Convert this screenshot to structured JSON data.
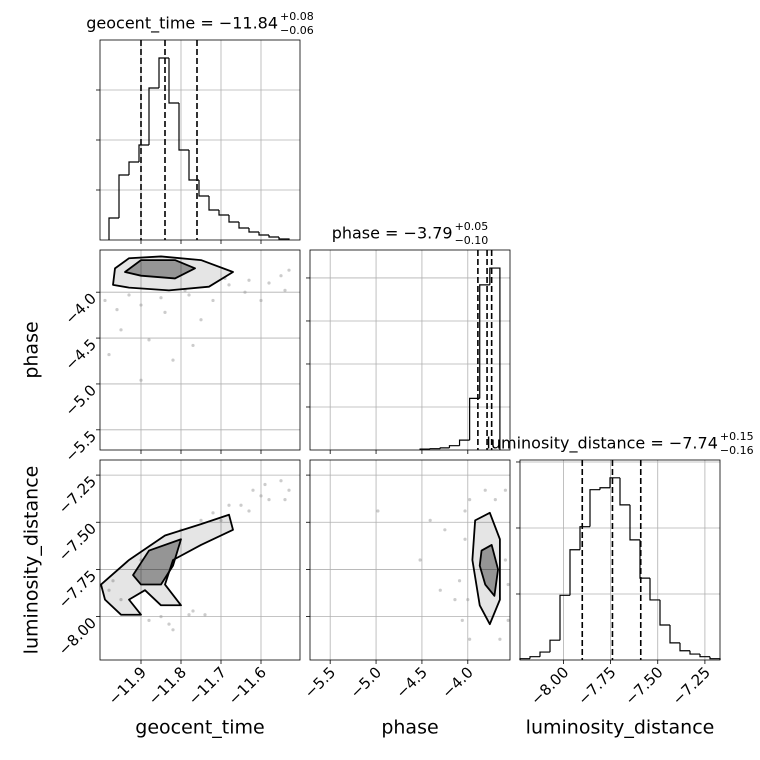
{
  "chart_data": [
    {
      "type": "histogram",
      "title": "geocent_time = −11.84",
      "title_sup": "+0.08",
      "title_sub": "−0.06",
      "bins": [
        -11.98,
        -11.955,
        -11.93,
        -11.905,
        -11.88,
        -11.855,
        -11.83,
        -11.805,
        -11.78,
        -11.755,
        -11.73,
        -11.705,
        -11.68,
        -11.655,
        -11.63,
        -11.605,
        -11.58,
        -11.555,
        -11.53
      ],
      "values": [
        0.44,
        1.3,
        1.56,
        1.9,
        3.04,
        3.64,
        2.74,
        1.8,
        1.2,
        0.88,
        0.6,
        0.5,
        0.36,
        0.24,
        0.16,
        0.1,
        0.06,
        0.02
      ],
      "quantiles": [
        -11.9,
        -11.84,
        -11.76
      ],
      "xlim": [
        -12.0025,
        -11.5025
      ],
      "xticks": [
        -11.9,
        -11.8,
        -11.7,
        -11.6
      ],
      "ylim": [
        0,
        4
      ],
      "yticks": [
        1,
        2,
        3
      ],
      "grid": true,
      "color": "#000000"
    },
    {
      "type": "scatter",
      "ylabel": "phase",
      "x": [
        -11.99,
        -11.96,
        -11.9,
        -11.85,
        -11.78,
        -11.68,
        -11.63,
        -11.58,
        -11.54,
        -11.88,
        -11.95,
        -11.75,
        -11.82,
        -11.9,
        -11.6,
        -11.64,
        -11.72,
        -11.98,
        -11.79,
        -11.69,
        -11.53,
        -11.55,
        -11.84,
        -11.77,
        -11.93
      ],
      "y": [
        -4.09,
        -4.19,
        -4.14,
        -4.06,
        -4.03,
        -3.92,
        -3.87,
        -3.9,
        -3.98,
        -4.52,
        -4.41,
        -4.3,
        -4.74,
        -4.96,
        -4.09,
        -4.0,
        -4.09,
        -4.68,
        -3.98,
        -3.85,
        -3.76,
        -3.82,
        -4.22,
        -4.58,
        -4.03
      ],
      "contours": [
        {
          "x": [
            -11.97,
            -11.965,
            -11.93,
            -11.85,
            -11.75,
            -11.67,
            -11.73,
            -11.83,
            -11.93,
            -11.97
          ],
          "y": [
            -3.92,
            -3.74,
            -3.63,
            -3.61,
            -3.65,
            -3.78,
            -3.94,
            -3.98,
            -3.95,
            -3.92
          ]
        },
        {
          "x": [
            -11.94,
            -11.9,
            -11.815,
            -11.765,
            -11.815,
            -11.9,
            -11.94
          ],
          "y": [
            -3.78,
            -3.65,
            -3.65,
            -3.74,
            -3.85,
            -3.82,
            -3.78
          ]
        }
      ],
      "xlim": [
        -12.0025,
        -11.5025
      ],
      "xticks": [
        -11.9,
        -11.8,
        -11.7,
        -11.6
      ],
      "ylim": [
        -5.72,
        -3.54
      ],
      "yticks": [
        {
          "value": -5.5,
          "label": "−5.5"
        },
        {
          "value": -5.0,
          "label": "−5.0"
        },
        {
          "value": -4.5,
          "label": "−4.5"
        },
        {
          "value": -4.0,
          "label": "−4.0"
        }
      ],
      "grid": true,
      "color": "#999999"
    },
    {
      "type": "histogram",
      "title": "phase = −3.79",
      "title_sup": "+0.05",
      "title_sub": "−0.10",
      "bins": [
        -4.52,
        -4.41,
        -4.3,
        -4.2,
        -4.09,
        -3.98,
        -3.87,
        -3.76,
        -3.65
      ],
      "values": [
        0.02,
        0.03,
        0.05,
        0.1,
        0.23,
        1.2,
        3.84,
        4.23
      ],
      "quantiles": [
        -3.89,
        -3.79,
        -3.74
      ],
      "xlim": [
        -5.72,
        -3.54
      ],
      "xticks": [
        -5.5,
        -5.0,
        -4.5,
        -4.0
      ],
      "ylim": [
        0,
        4.65
      ],
      "yticks": [
        1,
        2,
        3,
        4
      ],
      "grid": true,
      "color": "#000000"
    },
    {
      "type": "scatter",
      "xlabel": "geocent_time",
      "ylabel": "luminosity_distance",
      "x": [
        -11.65,
        -11.6,
        -11.55,
        -11.53,
        -11.63,
        -11.7,
        -11.58,
        -11.75,
        -11.8,
        -11.97,
        -11.78,
        -11.83,
        -11.88,
        -11.82,
        -11.74,
        -11.95,
        -11.98,
        -11.62,
        -11.68,
        -11.9,
        -11.54,
        -11.77,
        -11.85,
        -11.72,
        -11.59
      ],
      "y": [
        -7.41,
        -7.36,
        -7.28,
        -7.33,
        -7.44,
        -7.49,
        -7.38,
        -7.49,
        -7.54,
        -7.81,
        -7.99,
        -8.04,
        -8.02,
        -8.07,
        -7.99,
        -7.91,
        -7.86,
        -7.33,
        -7.41,
        -7.7,
        -7.38,
        -7.97,
        -8.0,
        -7.45,
        -7.3
      ],
      "contours": [
        {
          "x": [
            -12.0,
            -11.93,
            -11.84,
            -11.75,
            -11.68,
            -11.67,
            -11.75,
            -11.82,
            -11.84,
            -11.8,
            -11.85,
            -11.89,
            -11.93,
            -11.9,
            -11.95,
            -11.99,
            -12.0
          ],
          "y": [
            -7.83,
            -7.7,
            -7.57,
            -7.51,
            -7.46,
            -7.54,
            -7.62,
            -7.7,
            -7.83,
            -7.94,
            -7.94,
            -7.86,
            -7.91,
            -7.99,
            -7.99,
            -7.91,
            -7.83
          ]
        },
        {
          "x": [
            -11.92,
            -11.88,
            -11.8,
            -11.82,
            -11.85,
            -11.9,
            -11.92
          ],
          "y": [
            -7.78,
            -7.65,
            -7.59,
            -7.73,
            -7.83,
            -7.83,
            -7.78
          ]
        }
      ],
      "xlim": [
        -12.0025,
        -11.5025
      ],
      "xticks": [
        {
          "value": -11.9,
          "label": "−11.9"
        },
        {
          "value": -11.8,
          "label": "−11.8"
        },
        {
          "value": -11.7,
          "label": "−11.7"
        },
        {
          "value": -11.6,
          "label": "−11.6"
        }
      ],
      "ylim": [
        -8.23,
        -7.17
      ],
      "yticks": [
        {
          "value": -8.0,
          "label": "−8.00"
        },
        {
          "value": -7.75,
          "label": "−7.75"
        },
        {
          "value": -7.5,
          "label": "−7.50"
        },
        {
          "value": -7.25,
          "label": "−7.25"
        }
      ],
      "grid": true,
      "color": "#999999"
    },
    {
      "type": "scatter",
      "xlabel": "phase",
      "x": [
        -3.98,
        -4.03,
        -4.0,
        -3.59,
        -3.56,
        -4.09,
        -4.98,
        -4.52,
        -4.25,
        -4.06,
        -3.65,
        -3.81,
        -4.14,
        -3.59,
        -3.98,
        -4.3,
        -4.41,
        -3.7,
        -4.03,
        -3.56
      ],
      "y": [
        -7.38,
        -7.59,
        -7.91,
        -7.33,
        -8.02,
        -7.81,
        -7.44,
        -7.7,
        -7.54,
        -8.02,
        -8.12,
        -7.33,
        -7.91,
        -7.7,
        -8.12,
        -7.86,
        -7.49,
        -7.38,
        -7.44,
        -7.83
      ],
      "contours": [
        {
          "x": [
            -3.92,
            -3.76,
            -3.65,
            -3.65,
            -3.76,
            -3.87,
            -3.95,
            -3.92
          ],
          "y": [
            -7.49,
            -7.45,
            -7.59,
            -7.91,
            -8.04,
            -7.94,
            -7.7,
            -7.49
          ]
        },
        {
          "x": [
            -3.85,
            -3.74,
            -3.67,
            -3.71,
            -3.81,
            -3.87,
            -3.85
          ],
          "y": [
            -7.65,
            -7.62,
            -7.75,
            -7.89,
            -7.83,
            -7.73,
            -7.65
          ]
        }
      ],
      "xlim": [
        -5.72,
        -3.54
      ],
      "xticks": [
        {
          "value": -5.5,
          "label": "−5.5"
        },
        {
          "value": -5.0,
          "label": "−5.0"
        },
        {
          "value": -4.5,
          "label": "−4.5"
        },
        {
          "value": -4.0,
          "label": "−4.0"
        }
      ],
      "ylim": [
        -8.23,
        -7.17
      ],
      "yticks": [
        -8.0,
        -7.75,
        -7.5,
        -7.25
      ],
      "grid": true,
      "color": "#999999"
    },
    {
      "type": "histogram",
      "title": "luminosity_distance = −7.74",
      "title_sup": "+0.15",
      "title_sub": "−0.16",
      "xlabel": "luminosity_distance",
      "bins": [
        -8.23,
        -8.177,
        -8.124,
        -8.071,
        -8.018,
        -7.965,
        -7.912,
        -7.859,
        -7.806,
        -7.753,
        -7.7,
        -7.647,
        -7.594,
        -7.541,
        -7.488,
        -7.435,
        -7.382,
        -7.329,
        -7.276,
        -7.223,
        -7.17
      ],
      "values": [
        0.02,
        0.05,
        0.12,
        0.3,
        0.98,
        1.67,
        2.02,
        2.58,
        2.61,
        2.76,
        2.35,
        1.82,
        1.24,
        0.91,
        0.53,
        0.26,
        0.14,
        0.09,
        0.05,
        0.02
      ],
      "quantiles": [
        -7.9,
        -7.74,
        -7.59
      ],
      "xlim": [
        -8.23,
        -7.17
      ],
      "xticks": [
        {
          "value": -8.0,
          "label": "−8.00"
        },
        {
          "value": -7.75,
          "label": "−7.75"
        },
        {
          "value": -7.5,
          "label": "−7.50"
        },
        {
          "value": -7.25,
          "label": "−7.25"
        }
      ],
      "ylim": [
        0,
        3.03
      ],
      "yticks": [
        1,
        2,
        3
      ],
      "grid": true,
      "color": "#000000"
    }
  ]
}
